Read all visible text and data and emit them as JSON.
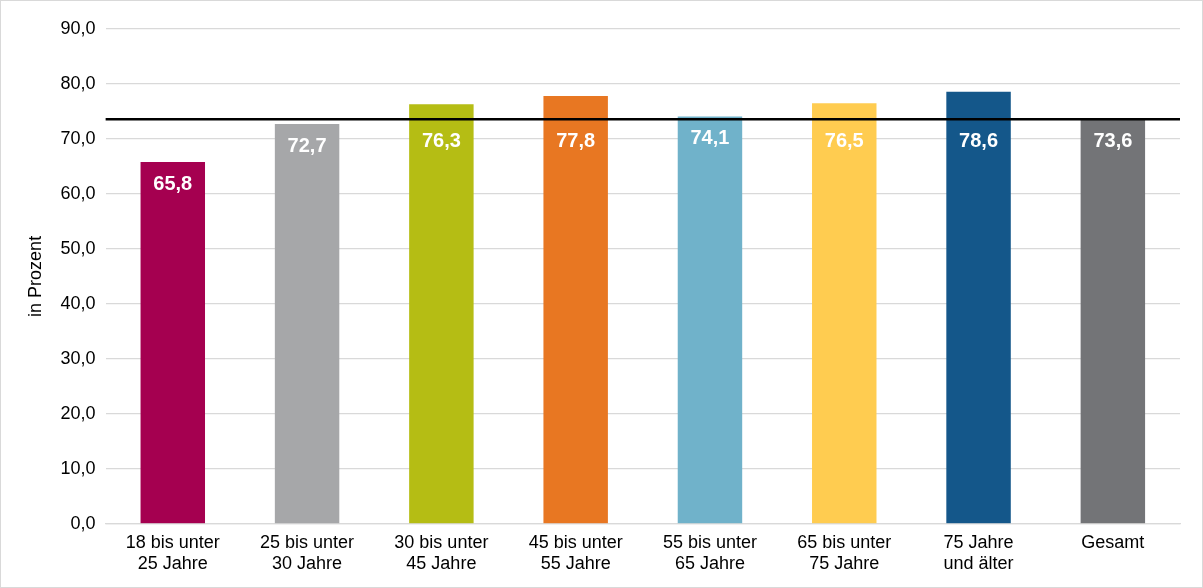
{
  "chart_data": {
    "type": "bar",
    "ylabel": "in Prozent",
    "categories": [
      "18 bis unter 25 Jahre",
      "25 bis unter 30 Jahre",
      "30 bis unter 45 Jahre",
      "45 bis unter 55 Jahre",
      "55 bis unter 65 Jahre",
      "65 bis unter 75 Jahre",
      "75 Jahre und älter",
      "Gesamt"
    ],
    "values": [
      65.8,
      72.7,
      76.3,
      77.8,
      74.1,
      76.5,
      78.6,
      73.6
    ],
    "colors": [
      "#a50050",
      "#a6a7a9",
      "#b5bd14",
      "#e87722",
      "#70b2ca",
      "#ffcc50",
      "#14578a",
      "#737477"
    ],
    "value_labels": [
      "65,8",
      "72,7",
      "76,3",
      "77,8",
      "74,1",
      "76,5",
      "78,6",
      "73,6"
    ],
    "ylim": [
      0,
      90
    ],
    "yticks": [
      {
        "value": 0,
        "label": "0,0"
      },
      {
        "value": 10,
        "label": "10,0"
      },
      {
        "value": 20,
        "label": "20,0"
      },
      {
        "value": 30,
        "label": "30,0"
      },
      {
        "value": 40,
        "label": "40,0"
      },
      {
        "value": 50,
        "label": "50,0"
      },
      {
        "value": 60,
        "label": "60,0"
      },
      {
        "value": 70,
        "label": "70,0"
      },
      {
        "value": 80,
        "label": "80,0"
      },
      {
        "value": 90,
        "label": "90,0"
      }
    ],
    "ref_lines": [
      {
        "axis": "y",
        "value": 73.6,
        "color": "#000000"
      }
    ],
    "grid": "y",
    "legend": false
  }
}
